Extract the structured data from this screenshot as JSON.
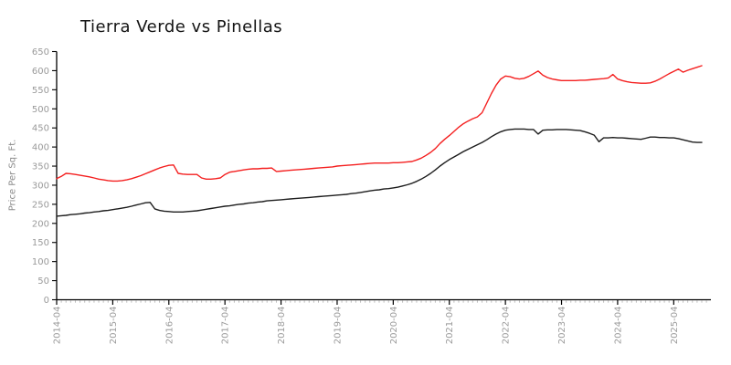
{
  "chart_data": {
    "type": "line",
    "title": "Tierra Verde vs Pinellas",
    "ylabel": "Price Per Sq. Ft.",
    "ylim": [
      0,
      650
    ],
    "ytick_step": 50,
    "grid": false,
    "legend": "none",
    "x_start": "2014-04",
    "x_end": "2025-10",
    "x_frequency": "monthly",
    "xtick_labels": [
      "2014-04",
      "2015-04",
      "2016-04",
      "2017-04",
      "2018-04",
      "2019-04",
      "2020-04",
      "2021-04",
      "2022-04",
      "2023-04",
      "2024-04",
      "2025-04"
    ],
    "colors": {
      "axis": "#000000",
      "tick_label": "#9a9a9a",
      "minor_tick": "#bdbdbd",
      "title": "#141414"
    },
    "series": [
      {
        "name": "Tierra Verde",
        "color": "#f41f1f",
        "values": [
          317,
          323,
          331,
          330,
          328,
          326,
          324,
          322,
          319,
          316,
          314,
          312,
          311,
          311,
          312,
          314,
          317,
          321,
          325,
          330,
          335,
          340,
          345,
          349,
          352,
          353,
          331,
          329,
          328,
          328,
          328,
          319,
          316,
          316,
          317,
          319,
          328,
          334,
          336,
          338,
          340,
          342,
          343,
          343,
          344,
          344,
          345,
          336,
          337,
          338,
          339,
          340,
          341,
          342,
          343,
          344,
          345,
          346,
          347,
          348,
          350,
          351,
          352,
          353,
          354,
          355,
          356,
          357,
          358,
          358,
          358,
          358,
          359,
          359,
          360,
          361,
          362,
          366,
          371,
          378,
          386,
          396,
          409,
          420,
          430,
          441,
          452,
          461,
          468,
          474,
          479,
          490,
          515,
          540,
          562,
          578,
          586,
          584,
          580,
          578,
          580,
          585,
          592,
          599,
          588,
          582,
          578,
          576,
          574,
          574,
          574,
          574,
          575,
          575,
          576,
          577,
          578,
          579,
          581,
          590,
          578,
          574,
          571,
          569,
          568,
          567,
          567,
          568,
          572,
          578,
          585,
          592,
          598,
          604,
          596,
          601,
          605,
          609,
          613
        ]
      },
      {
        "name": "Pinellas",
        "color": "#1c1c1c",
        "values": [
          219,
          220,
          221,
          223,
          224,
          225,
          227,
          228,
          230,
          231,
          233,
          234,
          236,
          238,
          240,
          242,
          245,
          248,
          251,
          254,
          255,
          238,
          234,
          232,
          231,
          230,
          230,
          230,
          231,
          232,
          233,
          235,
          237,
          239,
          241,
          243,
          245,
          246,
          248,
          250,
          251,
          253,
          254,
          256,
          257,
          259,
          260,
          261,
          262,
          263,
          264,
          265,
          266,
          267,
          268,
          269,
          270,
          271,
          272,
          273,
          274,
          275,
          276,
          278,
          279,
          281,
          283,
          285,
          287,
          288,
          290,
          291,
          293,
          295,
          298,
          301,
          305,
          310,
          316,
          323,
          331,
          340,
          350,
          359,
          367,
          374,
          381,
          388,
          394,
          400,
          406,
          412,
          419,
          427,
          434,
          440,
          444,
          446,
          447,
          447,
          447,
          446,
          446,
          434,
          444,
          445,
          445,
          446,
          446,
          446,
          445,
          444,
          443,
          440,
          436,
          431,
          414,
          424,
          424,
          425,
          424,
          424,
          423,
          422,
          421,
          420,
          423,
          426,
          426,
          425,
          425,
          424,
          424,
          422,
          419,
          416,
          413,
          412,
          412
        ]
      }
    ]
  }
}
